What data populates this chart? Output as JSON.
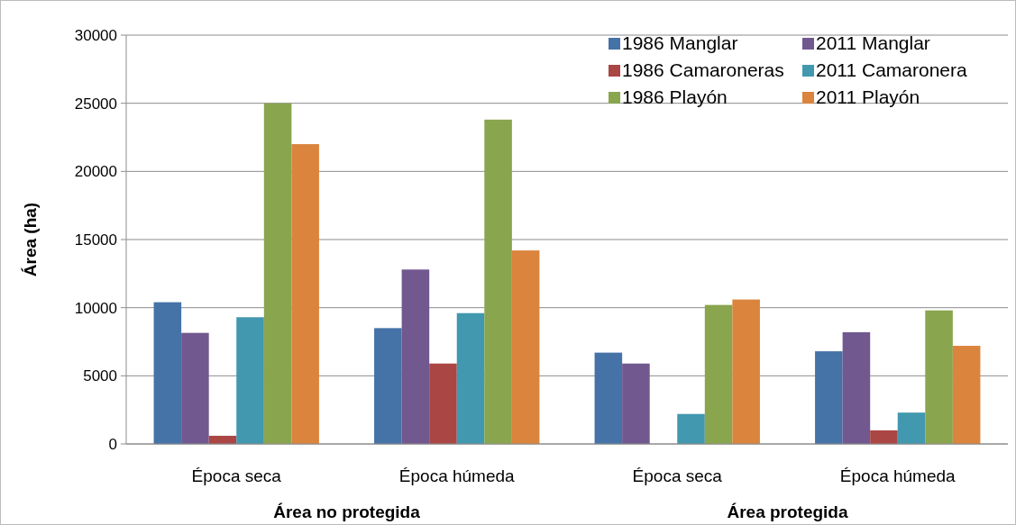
{
  "chart_data": {
    "type": "bar",
    "ylabel": "Área (ha)",
    "categories": [
      "Época seca",
      "Época húmeda",
      "Época seca",
      "Época húmeda"
    ],
    "series": [
      {
        "name": "1986 Manglar",
        "color": "#4572a7",
        "values": [
          10400,
          8500,
          6700,
          6800
        ]
      },
      {
        "name": "2011 Manglar",
        "color": "#71588f",
        "values": [
          8150,
          12800,
          5900,
          8200
        ]
      },
      {
        "name": "1986 Camaroneras",
        "color": "#aa4643",
        "values": [
          600,
          5900,
          null,
          1000
        ]
      },
      {
        "name": "2011 Camaronera",
        "color": "#4198af",
        "values": [
          9300,
          9600,
          2200,
          2300
        ]
      },
      {
        "name": "1986 Playón",
        "color": "#89a54e",
        "values": [
          25000,
          23800,
          10200,
          9800
        ]
      },
      {
        "name": "2011 Playón",
        "color": "#db843d",
        "values": [
          22000,
          14200,
          10600,
          7200
        ]
      }
    ],
    "ylim": [
      0,
      30000
    ],
    "yticks": [
      0,
      5000,
      10000,
      15000,
      20000,
      25000,
      30000
    ],
    "grid": "y",
    "legend": "top right",
    "annotations": [
      "Área no protegida",
      "Área protegida"
    ]
  }
}
